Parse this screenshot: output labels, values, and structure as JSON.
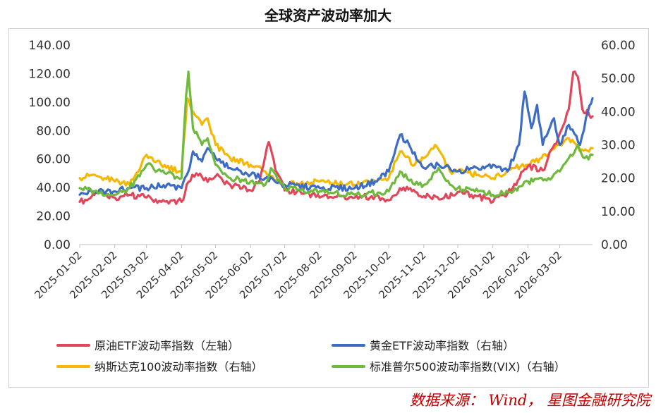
{
  "title": "全球资产波动率加大",
  "source": "数据来源： Wind， 星图金融研究院",
  "chart_data": {
    "type": "line",
    "title": "全球资产波动率加大",
    "left_axis": {
      "ylim": [
        0,
        140
      ],
      "ticks": [
        "0.00",
        "20.00",
        "40.00",
        "60.00",
        "80.00",
        "100.00",
        "120.00",
        "140.00"
      ]
    },
    "right_axis": {
      "ylim": [
        0,
        60
      ],
      "ticks": [
        "0.00",
        "10.00",
        "20.00",
        "30.00",
        "40.00",
        "50.00",
        "60.00"
      ]
    },
    "x_ticks": [
      "2025-01-02",
      "2025-02-02",
      "2025-03-02",
      "2025-04-02",
      "2025-05-02",
      "2025-06-02",
      "2025-07-02",
      "2025-08-02",
      "2025-09-02",
      "2025-10-02",
      "2025-11-02",
      "2025-12-02",
      "2026-01-02",
      "2026-02-02",
      "2026-03-02"
    ],
    "legend_position": "bottom",
    "grid": false,
    "series": [
      {
        "name": "原油ETF波动率指数（左轴）",
        "axis": "left",
        "color": "#e0475b",
        "points": [
          [
            "2025-01-02",
            30
          ],
          [
            "2025-01-10",
            32
          ],
          [
            "2025-01-20",
            37
          ],
          [
            "2025-02-02",
            33
          ],
          [
            "2025-02-15",
            35
          ],
          [
            "2025-03-02",
            33
          ],
          [
            "2025-03-15",
            30
          ],
          [
            "2025-03-25",
            31
          ],
          [
            "2025-04-02",
            30
          ],
          [
            "2025-04-08",
            44
          ],
          [
            "2025-04-15",
            50
          ],
          [
            "2025-04-25",
            44
          ],
          [
            "2025-05-02",
            48
          ],
          [
            "2025-05-15",
            42
          ],
          [
            "2025-06-02",
            38
          ],
          [
            "2025-06-10",
            45
          ],
          [
            "2025-06-18",
            72
          ],
          [
            "2025-06-24",
            52
          ],
          [
            "2025-07-02",
            38
          ],
          [
            "2025-07-20",
            36
          ],
          [
            "2025-08-02",
            33
          ],
          [
            "2025-08-20",
            34
          ],
          [
            "2025-09-02",
            33
          ],
          [
            "2025-09-20",
            34
          ],
          [
            "2025-10-02",
            31
          ],
          [
            "2025-10-15",
            40
          ],
          [
            "2025-11-02",
            34
          ],
          [
            "2025-11-20",
            33
          ],
          [
            "2025-12-02",
            37
          ],
          [
            "2025-12-20",
            34
          ],
          [
            "2026-01-02",
            30
          ],
          [
            "2026-01-15",
            36
          ],
          [
            "2026-02-02",
            55
          ],
          [
            "2026-02-15",
            52
          ],
          [
            "2026-03-02",
            78
          ],
          [
            "2026-03-10",
            95
          ],
          [
            "2026-03-14",
            121
          ],
          [
            "2026-03-18",
            118
          ],
          [
            "2026-03-22",
            95
          ],
          [
            "2026-03-31",
            90
          ]
        ]
      },
      {
        "name": "黄金ETF波动率指数（右轴）",
        "axis": "right",
        "color": "#3d6cc4",
        "points": [
          [
            "2025-01-02",
            15
          ],
          [
            "2025-01-15",
            16
          ],
          [
            "2025-02-02",
            16
          ],
          [
            "2025-02-15",
            17
          ],
          [
            "2025-03-02",
            17
          ],
          [
            "2025-03-20",
            18
          ],
          [
            "2025-04-02",
            17
          ],
          [
            "2025-04-08",
            22
          ],
          [
            "2025-04-12",
            28
          ],
          [
            "2025-04-20",
            25
          ],
          [
            "2025-04-25",
            29
          ],
          [
            "2025-05-02",
            26
          ],
          [
            "2025-05-15",
            23
          ],
          [
            "2025-06-02",
            21
          ],
          [
            "2025-06-15",
            20
          ],
          [
            "2025-07-02",
            18
          ],
          [
            "2025-08-02",
            17
          ],
          [
            "2025-09-02",
            17
          ],
          [
            "2025-09-20",
            19
          ],
          [
            "2025-10-02",
            22
          ],
          [
            "2025-10-12",
            33
          ],
          [
            "2025-10-20",
            30
          ],
          [
            "2025-11-02",
            23
          ],
          [
            "2025-11-15",
            24
          ],
          [
            "2025-12-02",
            22
          ],
          [
            "2025-12-15",
            23
          ],
          [
            "2026-01-02",
            24
          ],
          [
            "2026-01-15",
            22
          ],
          [
            "2026-01-25",
            30
          ],
          [
            "2026-01-30",
            46
          ],
          [
            "2026-02-05",
            35
          ],
          [
            "2026-02-10",
            42
          ],
          [
            "2026-02-15",
            30
          ],
          [
            "2026-02-20",
            34
          ],
          [
            "2026-02-25",
            38
          ],
          [
            "2026-03-02",
            30
          ],
          [
            "2026-03-10",
            36
          ],
          [
            "2026-03-20",
            30
          ],
          [
            "2026-03-27",
            40
          ],
          [
            "2026-03-31",
            44
          ]
        ]
      },
      {
        "name": "纳斯达克100波动率指数（右轴）",
        "axis": "right",
        "color": "#f5b800",
        "points": [
          [
            "2025-01-02",
            20
          ],
          [
            "2025-01-15",
            21
          ],
          [
            "2025-02-02",
            19
          ],
          [
            "2025-02-15",
            18
          ],
          [
            "2025-03-02",
            27
          ],
          [
            "2025-03-15",
            24
          ],
          [
            "2025-04-02",
            22
          ],
          [
            "2025-04-07",
            44
          ],
          [
            "2025-04-12",
            40
          ],
          [
            "2025-04-20",
            36
          ],
          [
            "2025-04-25",
            38
          ],
          [
            "2025-05-02",
            30
          ],
          [
            "2025-05-15",
            26
          ],
          [
            "2025-06-02",
            24
          ],
          [
            "2025-06-15",
            22
          ],
          [
            "2025-07-02",
            18
          ],
          [
            "2025-08-02",
            19
          ],
          [
            "2025-09-02",
            18
          ],
          [
            "2025-09-20",
            19
          ],
          [
            "2025-10-02",
            20
          ],
          [
            "2025-10-12",
            28
          ],
          [
            "2025-10-25",
            24
          ],
          [
            "2025-11-02",
            26
          ],
          [
            "2025-11-12",
            30
          ],
          [
            "2025-11-25",
            22
          ],
          [
            "2025-12-02",
            22
          ],
          [
            "2025-12-20",
            21
          ],
          [
            "2026-01-02",
            20
          ],
          [
            "2026-01-20",
            23
          ],
          [
            "2026-02-02",
            24
          ],
          [
            "2026-02-20",
            27
          ],
          [
            "2026-03-02",
            30
          ],
          [
            "2026-03-10",
            32
          ],
          [
            "2026-03-20",
            28
          ],
          [
            "2026-03-31",
            29
          ]
        ]
      },
      {
        "name": "标准普尔500波动率指数(VIX)（右轴）",
        "axis": "right",
        "color": "#6fb93c",
        "points": [
          [
            "2025-01-02",
            17
          ],
          [
            "2025-01-15",
            16
          ],
          [
            "2025-02-02",
            15
          ],
          [
            "2025-02-15",
            17
          ],
          [
            "2025-03-02",
            24
          ],
          [
            "2025-03-15",
            22
          ],
          [
            "2025-04-02",
            20
          ],
          [
            "2025-04-06",
            45
          ],
          [
            "2025-04-08",
            52
          ],
          [
            "2025-04-12",
            35
          ],
          [
            "2025-04-20",
            30
          ],
          [
            "2025-04-25",
            32
          ],
          [
            "2025-05-02",
            24
          ],
          [
            "2025-05-15",
            20
          ],
          [
            "2025-06-02",
            19
          ],
          [
            "2025-06-15",
            18
          ],
          [
            "2025-06-20",
            23
          ],
          [
            "2025-07-02",
            17
          ],
          [
            "2025-08-02",
            16
          ],
          [
            "2025-09-02",
            15
          ],
          [
            "2025-10-02",
            16
          ],
          [
            "2025-10-12",
            22
          ],
          [
            "2025-10-25",
            18
          ],
          [
            "2025-11-02",
            18
          ],
          [
            "2025-11-15",
            23
          ],
          [
            "2025-11-25",
            18
          ],
          [
            "2025-12-02",
            17
          ],
          [
            "2025-12-20",
            16
          ],
          [
            "2026-01-02",
            15
          ],
          [
            "2026-01-20",
            16
          ],
          [
            "2026-02-02",
            19
          ],
          [
            "2026-02-20",
            20
          ],
          [
            "2026-03-02",
            22
          ],
          [
            "2026-03-10",
            26
          ],
          [
            "2026-03-18",
            30
          ],
          [
            "2026-03-24",
            26
          ],
          [
            "2026-03-31",
            27
          ]
        ]
      }
    ]
  }
}
